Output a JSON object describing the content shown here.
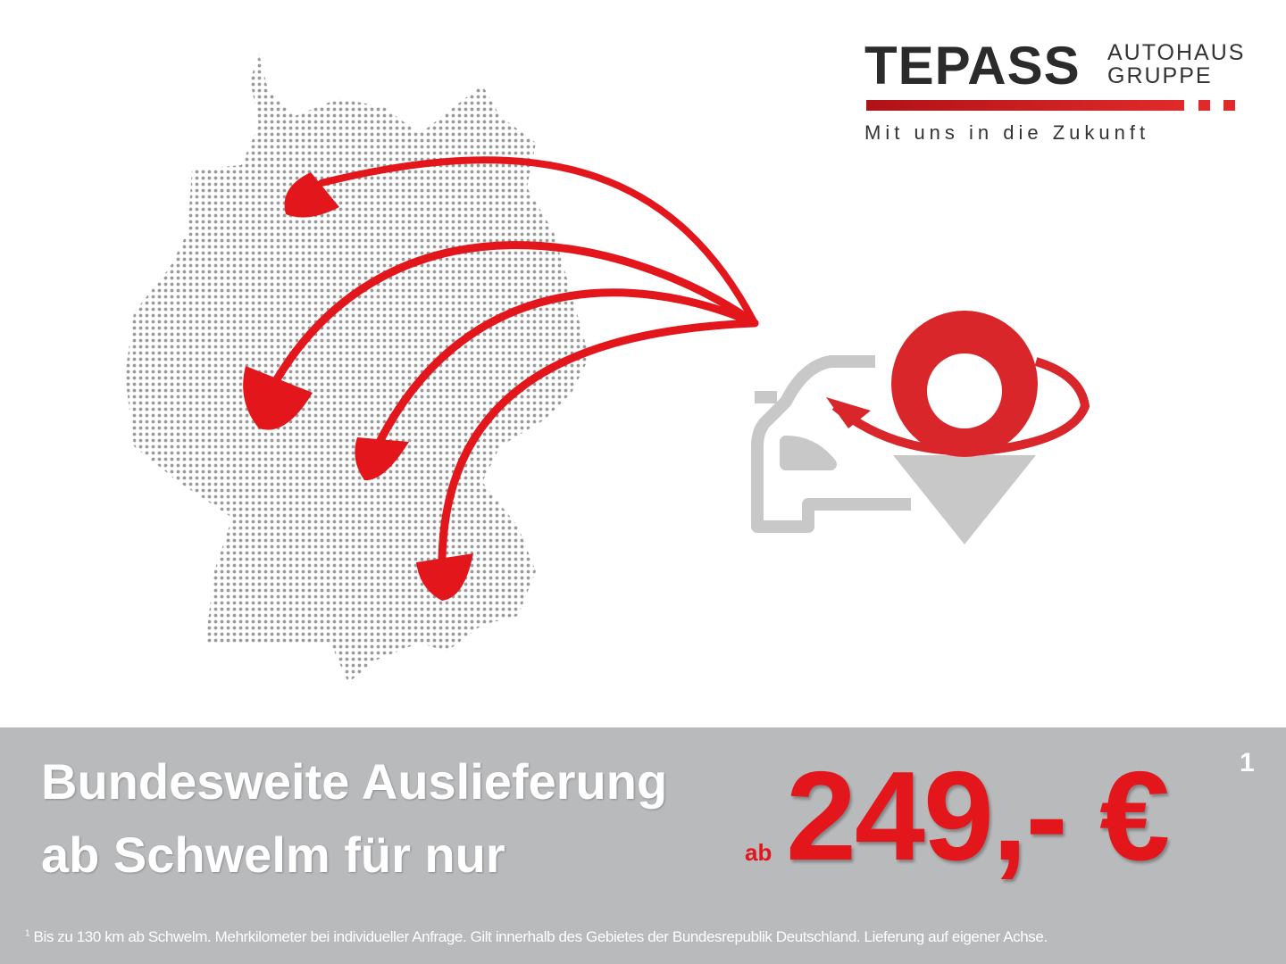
{
  "logo": {
    "brand": "TEPASS",
    "sub_line1": "AUTOHAUS",
    "sub_line2": "GRUPPE",
    "tagline": "Mit uns in die Zukunft"
  },
  "icons": [
    "germany-dot-map",
    "delivery-arrows",
    "car-icon",
    "location-pin-icon"
  ],
  "colors": {
    "accent": "#e3161b",
    "banner": "#b9babc",
    "map_dots": "#9a9a9a",
    "car": "#c8c8c8"
  },
  "banner": {
    "headline_line1": "Bundesweite Auslieferung",
    "headline_line2": "ab Schwelm für nur",
    "price_prefix": "ab",
    "price": "249,- €",
    "price_footnote_marker": "1",
    "footnote_marker": "1",
    "footnote": "Bis zu 130 km ab Schwelm. Mehrkilometer bei individueller Anfrage. Gilt innerhalb des Gebietes der Bundesrepublik Deutschland. Lieferung auf eigener Achse."
  }
}
